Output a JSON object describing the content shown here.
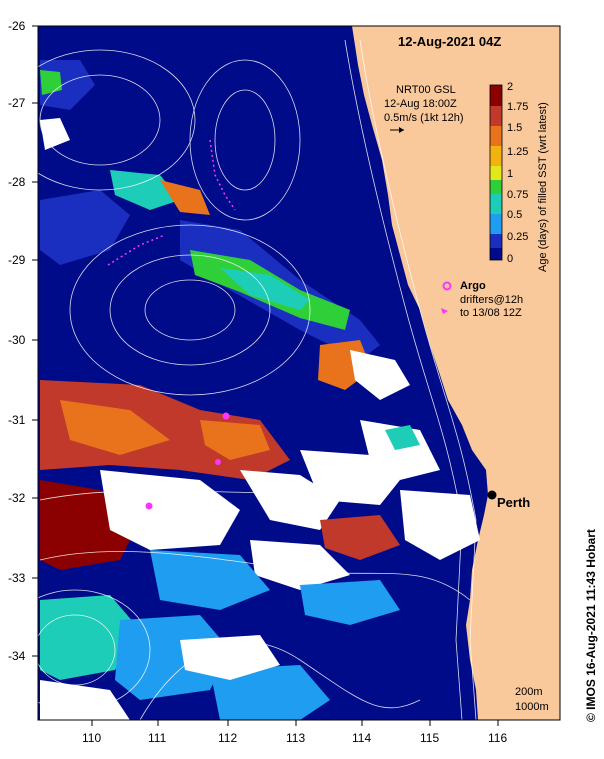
{
  "title": "12-Aug-2021 04Z",
  "product": {
    "line1": "NRT00 GSL",
    "line2": "12-Aug 18:00Z",
    "line3": "0.5m/s (1kt 12h)"
  },
  "colorbar": {
    "label": "Age (days) of filled SST (wrt latest)",
    "ticks": [
      "2",
      "1.75",
      "1.5",
      "1.25",
      "1",
      "0.75",
      "0.5",
      "0.25",
      "0"
    ],
    "colors": [
      "#8b0000",
      "#c0392b",
      "#e8731c",
      "#f2b20f",
      "#e3e81a",
      "#2fcf3a",
      "#1ecdb7",
      "#1f9df0",
      "#1a2fbf",
      "#000b8a"
    ]
  },
  "legend": {
    "argo": "Argo",
    "drifters": "drifters@12h",
    "drifters2": "to 13/08 12Z",
    "argo_color": "#ff33ff",
    "drifter_color": "#ff33ff"
  },
  "city": {
    "name": "Perth"
  },
  "axes": {
    "lat_ticks": [
      "-26",
      "-27",
      "-28",
      "-29",
      "-30",
      "-31",
      "-32",
      "-33",
      "-34"
    ],
    "lon_ticks": [
      "110",
      "111",
      "112",
      "113",
      "114",
      "115",
      "116"
    ],
    "lat_range": [
      -34.8,
      -26
    ],
    "lon_range": [
      109.3,
      116.9
    ]
  },
  "contours": {
    "a": "200m",
    "b": "1000m"
  },
  "credit": "© IMOS 16-Aug-2021 11:43 Hobart",
  "colors": {
    "land": "#f9c89b",
    "ocean_old": "#000b8a",
    "cloud": "#ffffff"
  }
}
